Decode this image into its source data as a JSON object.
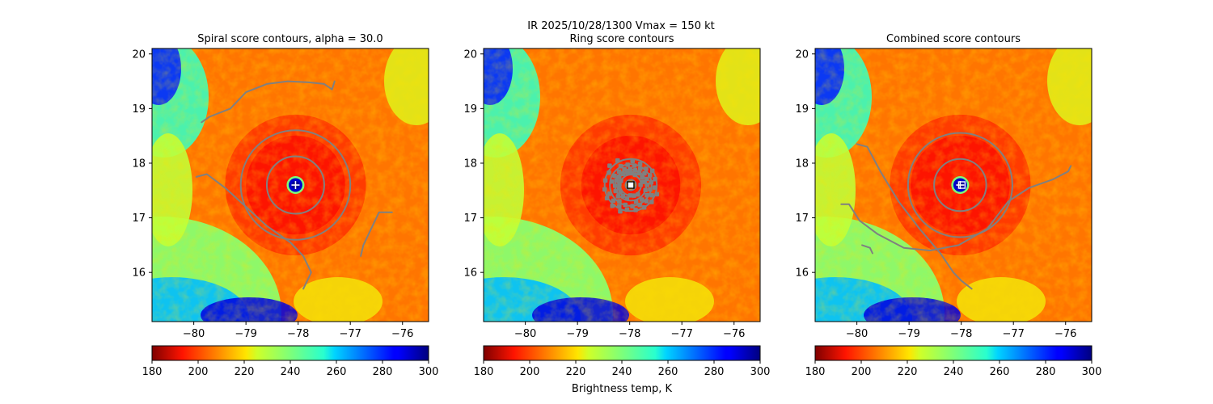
{
  "suptitle": "IR  2025/10/28/1300    Vmax = 150 kt",
  "colorbar_label": "Brightness temp, K",
  "colors": {
    "contour": "#808080",
    "marker": "#ffffff",
    "spine": "#000000"
  },
  "chart_data": [
    {
      "type": "heatmap",
      "title": "Spiral score contours, alpha = 30.0",
      "variable": "Brightness temperature (K)",
      "colormap": "jet_r",
      "xlim": [
        -80.8,
        -75.5
      ],
      "ylim": [
        15.1,
        20.1
      ],
      "xticks": [
        -80,
        -79,
        -78,
        -77,
        -76
      ],
      "yticks": [
        16,
        17,
        18,
        19,
        20
      ],
      "center": {
        "lon": -78.05,
        "lat": 17.6
      },
      "eye_temp_K": 292,
      "marker": "plus",
      "colorbar": {
        "range": [
          180,
          300
        ],
        "ticks": [
          180,
          200,
          220,
          240,
          260,
          280,
          300
        ],
        "label": ""
      },
      "contours": [
        {
          "kind": "ring",
          "radius_deg": 0.55
        },
        {
          "kind": "ring",
          "radius_deg": 1.05
        },
        {
          "kind": "arc",
          "points": [
            [
              -79.85,
              18.75
            ],
            [
              -79.7,
              18.85
            ],
            [
              -79.3,
              19.0
            ],
            [
              -79.0,
              19.3
            ],
            [
              -78.6,
              19.45
            ],
            [
              -78.2,
              19.5
            ],
            [
              -77.8,
              19.48
            ],
            [
              -77.5,
              19.45
            ],
            [
              -77.35,
              19.35
            ],
            [
              -77.3,
              19.5
            ]
          ]
        },
        {
          "kind": "arc",
          "points": [
            [
              -79.95,
              17.75
            ],
            [
              -79.75,
              17.8
            ],
            [
              -79.4,
              17.55
            ],
            [
              -79.0,
              17.2
            ],
            [
              -78.6,
              16.85
            ],
            [
              -78.15,
              16.55
            ],
            [
              -77.9,
              16.3
            ],
            [
              -77.75,
              16.0
            ],
            [
              -77.9,
              15.7
            ]
          ]
        },
        {
          "kind": "arc",
          "points": [
            [
              -76.8,
              16.3
            ],
            [
              -76.75,
              16.5
            ],
            [
              -76.6,
              16.8
            ],
            [
              -76.45,
              17.1
            ],
            [
              -76.2,
              17.1
            ]
          ]
        }
      ]
    },
    {
      "type": "heatmap",
      "title": "Ring score contours",
      "variable": "Brightness temperature (K)",
      "colormap": "jet_r",
      "xlim": [
        -80.8,
        -75.5
      ],
      "ylim": [
        15.1,
        20.1
      ],
      "xticks": [
        -80,
        -79,
        -78,
        -77,
        -76
      ],
      "yticks": [
        16,
        17,
        18,
        19,
        20
      ],
      "center": {
        "lon": -77.98,
        "lat": 17.6
      },
      "eye_temp_K": 212,
      "marker": "square",
      "colorbar": {
        "range": [
          180,
          300
        ],
        "ticks": [
          180,
          200,
          220,
          240,
          260,
          280,
          300
        ],
        "label": "Brightness temp, K"
      },
      "contours": [
        {
          "kind": "ring",
          "radius_deg": 0.1
        },
        {
          "kind": "ring",
          "radius_deg": 0.2
        },
        {
          "kind": "ring",
          "radius_deg": 0.3
        },
        {
          "kind": "ring",
          "radius_deg": 0.4
        },
        {
          "kind": "ring",
          "radius_deg": 0.5
        }
      ]
    },
    {
      "type": "heatmap",
      "title": "Combined score contours",
      "variable": "Brightness temperature (K)",
      "colormap": "jet_r",
      "xlim": [
        -80.8,
        -75.5
      ],
      "ylim": [
        15.1,
        20.1
      ],
      "xticks": [
        -80,
        -79,
        -78,
        -77,
        -76
      ],
      "yticks": [
        16,
        17,
        18,
        19,
        20
      ],
      "center": {
        "lon": -78.02,
        "lat": 17.6
      },
      "eye_temp_K": 292,
      "marker": "plus-square",
      "colorbar": {
        "range": [
          180,
          300
        ],
        "ticks": [
          180,
          200,
          220,
          240,
          260,
          280,
          300
        ],
        "label": ""
      },
      "contours": [
        {
          "kind": "ring",
          "radius_deg": 0.5
        },
        {
          "kind": "ring",
          "radius_deg": 1.0
        },
        {
          "kind": "arc",
          "points": [
            [
              -80.0,
              18.35
            ],
            [
              -79.8,
              18.3
            ],
            [
              -79.55,
              17.85
            ],
            [
              -79.2,
              17.3
            ],
            [
              -78.8,
              16.8
            ],
            [
              -78.4,
              16.35
            ],
            [
              -78.15,
              16.0
            ],
            [
              -78.0,
              15.85
            ],
            [
              -77.8,
              15.7
            ]
          ]
        },
        {
          "kind": "arc",
          "points": [
            [
              -80.3,
              17.25
            ],
            [
              -80.15,
              17.25
            ],
            [
              -79.95,
              16.95
            ],
            [
              -79.6,
              16.7
            ],
            [
              -79.1,
              16.45
            ],
            [
              -78.6,
              16.4
            ],
            [
              -78.05,
              16.5
            ],
            [
              -77.5,
              16.8
            ],
            [
              -77.1,
              17.3
            ],
            [
              -76.7,
              17.55
            ],
            [
              -76.25,
              17.7
            ],
            [
              -75.95,
              17.85
            ],
            [
              -75.9,
              17.95
            ]
          ]
        },
        {
          "kind": "arc",
          "points": [
            [
              -79.9,
              16.5
            ],
            [
              -79.75,
              16.45
            ],
            [
              -79.7,
              16.35
            ]
          ]
        }
      ]
    }
  ]
}
